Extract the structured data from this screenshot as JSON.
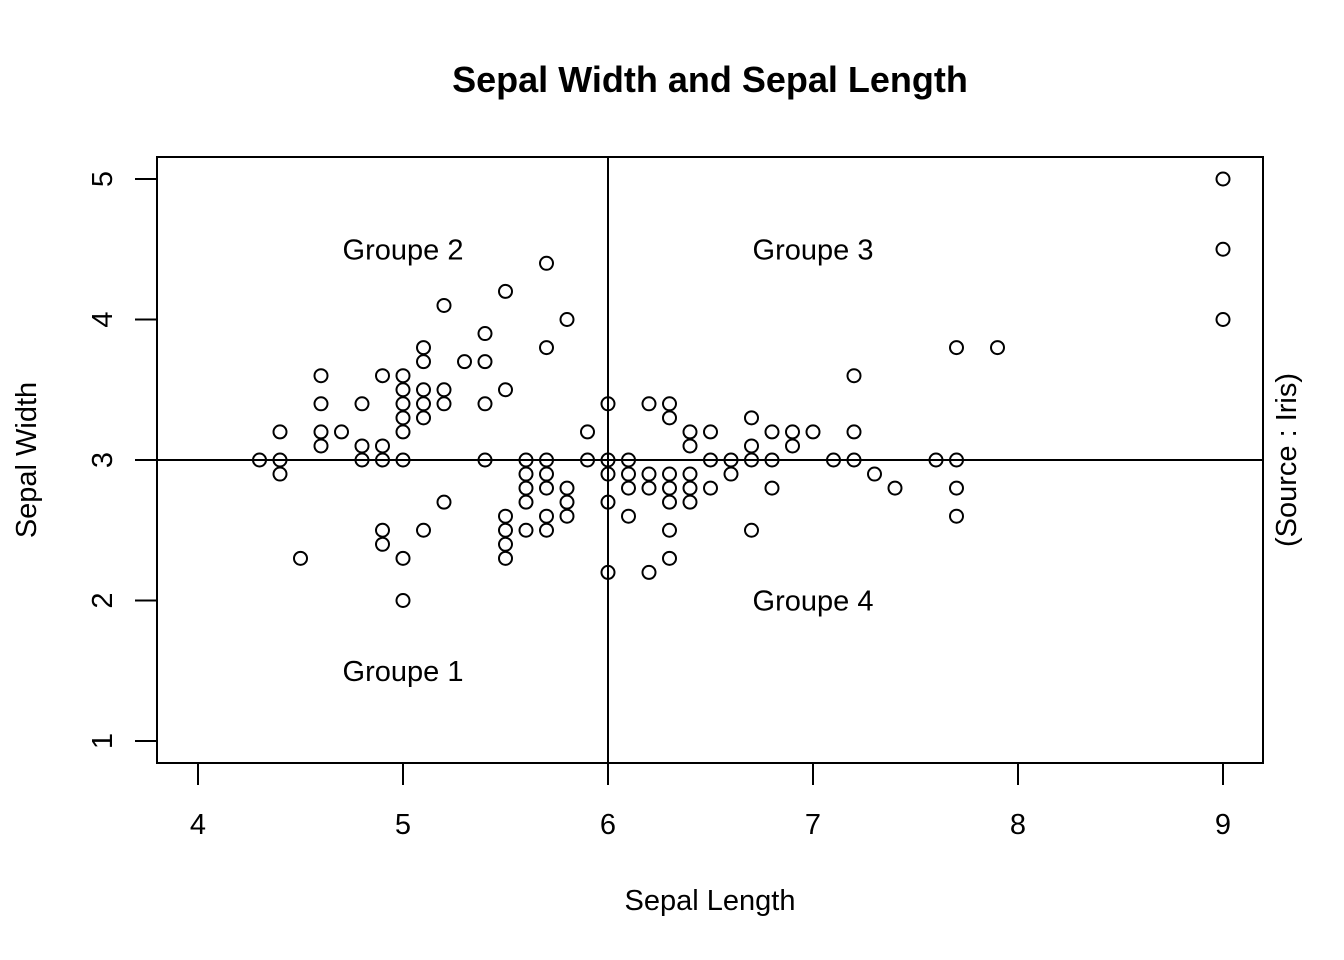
{
  "chart_data": {
    "type": "scatter",
    "title": "Sepal Width and Sepal Length",
    "xlabel": "Sepal Length",
    "ylabel": "Sepal Width",
    "right_label": "(Source : Iris)",
    "xlim": [
      4,
      9
    ],
    "ylim": [
      1,
      5
    ],
    "xticks": [
      4,
      5,
      6,
      7,
      8,
      9
    ],
    "yticks": [
      1,
      2,
      3,
      4,
      5
    ],
    "grid": false,
    "reference_lines": {
      "x": 6,
      "y": 3
    },
    "annotations": [
      {
        "text": "Groupe 1",
        "x": 5.0,
        "y": 1.5
      },
      {
        "text": "Groupe 2",
        "x": 5.0,
        "y": 4.5
      },
      {
        "text": "Groupe 3",
        "x": 7.0,
        "y": 4.5
      },
      {
        "text": "Groupe 4",
        "x": 7.0,
        "y": 2.0
      }
    ],
    "points": [
      [
        4.3,
        3.0
      ],
      [
        4.4,
        3.2
      ],
      [
        4.4,
        3.0
      ],
      [
        4.4,
        2.9
      ],
      [
        4.5,
        2.3
      ],
      [
        4.6,
        3.6
      ],
      [
        4.6,
        3.4
      ],
      [
        4.6,
        3.2
      ],
      [
        4.6,
        3.1
      ],
      [
        4.7,
        3.2
      ],
      [
        4.8,
        3.4
      ],
      [
        4.8,
        3.1
      ],
      [
        4.8,
        3.0
      ],
      [
        4.9,
        3.6
      ],
      [
        4.9,
        3.1
      ],
      [
        4.9,
        3.0
      ],
      [
        4.9,
        2.5
      ],
      [
        4.9,
        2.4
      ],
      [
        5.0,
        3.6
      ],
      [
        5.0,
        3.5
      ],
      [
        5.0,
        3.4
      ],
      [
        5.0,
        3.3
      ],
      [
        5.0,
        3.2
      ],
      [
        5.0,
        3.0
      ],
      [
        5.0,
        2.3
      ],
      [
        5.0,
        2.0
      ],
      [
        5.1,
        3.8
      ],
      [
        5.1,
        3.7
      ],
      [
        5.1,
        3.5
      ],
      [
        5.1,
        3.4
      ],
      [
        5.1,
        3.3
      ],
      [
        5.1,
        2.5
      ],
      [
        5.2,
        4.1
      ],
      [
        5.2,
        3.5
      ],
      [
        5.2,
        3.4
      ],
      [
        5.2,
        2.7
      ],
      [
        5.3,
        3.7
      ],
      [
        5.4,
        3.9
      ],
      [
        5.4,
        3.7
      ],
      [
        5.4,
        3.4
      ],
      [
        5.4,
        3.0
      ],
      [
        5.5,
        4.2
      ],
      [
        5.5,
        3.5
      ],
      [
        5.5,
        2.6
      ],
      [
        5.5,
        2.5
      ],
      [
        5.5,
        2.4
      ],
      [
        5.5,
        2.3
      ],
      [
        5.6,
        3.0
      ],
      [
        5.6,
        2.9
      ],
      [
        5.6,
        2.8
      ],
      [
        5.6,
        2.7
      ],
      [
        5.6,
        2.5
      ],
      [
        5.7,
        4.4
      ],
      [
        5.7,
        3.8
      ],
      [
        5.7,
        3.0
      ],
      [
        5.7,
        2.9
      ],
      [
        5.7,
        2.8
      ],
      [
        5.7,
        2.6
      ],
      [
        5.7,
        2.5
      ],
      [
        5.8,
        4.0
      ],
      [
        5.8,
        2.8
      ],
      [
        5.8,
        2.7
      ],
      [
        5.8,
        2.6
      ],
      [
        5.9,
        3.2
      ],
      [
        5.9,
        3.0
      ],
      [
        6.0,
        3.4
      ],
      [
        6.0,
        3.0
      ],
      [
        6.0,
        2.9
      ],
      [
        6.0,
        2.7
      ],
      [
        6.0,
        2.2
      ],
      [
        6.1,
        3.0
      ],
      [
        6.1,
        2.9
      ],
      [
        6.1,
        2.8
      ],
      [
        6.1,
        2.6
      ],
      [
        6.2,
        3.4
      ],
      [
        6.2,
        2.9
      ],
      [
        6.2,
        2.8
      ],
      [
        6.2,
        2.2
      ],
      [
        6.3,
        3.4
      ],
      [
        6.3,
        3.3
      ],
      [
        6.3,
        2.9
      ],
      [
        6.3,
        2.8
      ],
      [
        6.3,
        2.7
      ],
      [
        6.3,
        2.5
      ],
      [
        6.3,
        2.3
      ],
      [
        6.4,
        3.2
      ],
      [
        6.4,
        3.1
      ],
      [
        6.4,
        2.9
      ],
      [
        6.4,
        2.8
      ],
      [
        6.4,
        2.7
      ],
      [
        6.5,
        3.2
      ],
      [
        6.5,
        3.0
      ],
      [
        6.5,
        2.8
      ],
      [
        6.6,
        3.0
      ],
      [
        6.6,
        2.9
      ],
      [
        6.7,
        3.3
      ],
      [
        6.7,
        3.1
      ],
      [
        6.7,
        3.0
      ],
      [
        6.7,
        2.5
      ],
      [
        6.8,
        3.2
      ],
      [
        6.8,
        3.0
      ],
      [
        6.8,
        2.8
      ],
      [
        6.9,
        3.2
      ],
      [
        6.9,
        3.1
      ],
      [
        7.0,
        3.2
      ],
      [
        7.1,
        3.0
      ],
      [
        7.2,
        3.6
      ],
      [
        7.2,
        3.2
      ],
      [
        7.2,
        3.0
      ],
      [
        7.3,
        2.9
      ],
      [
        7.4,
        2.8
      ],
      [
        7.6,
        3.0
      ],
      [
        7.7,
        3.8
      ],
      [
        7.7,
        3.0
      ],
      [
        7.7,
        2.8
      ],
      [
        7.7,
        2.6
      ],
      [
        7.9,
        3.8
      ],
      [
        9.0,
        5.0
      ],
      [
        9.0,
        4.5
      ],
      [
        9.0,
        4.0
      ]
    ]
  }
}
